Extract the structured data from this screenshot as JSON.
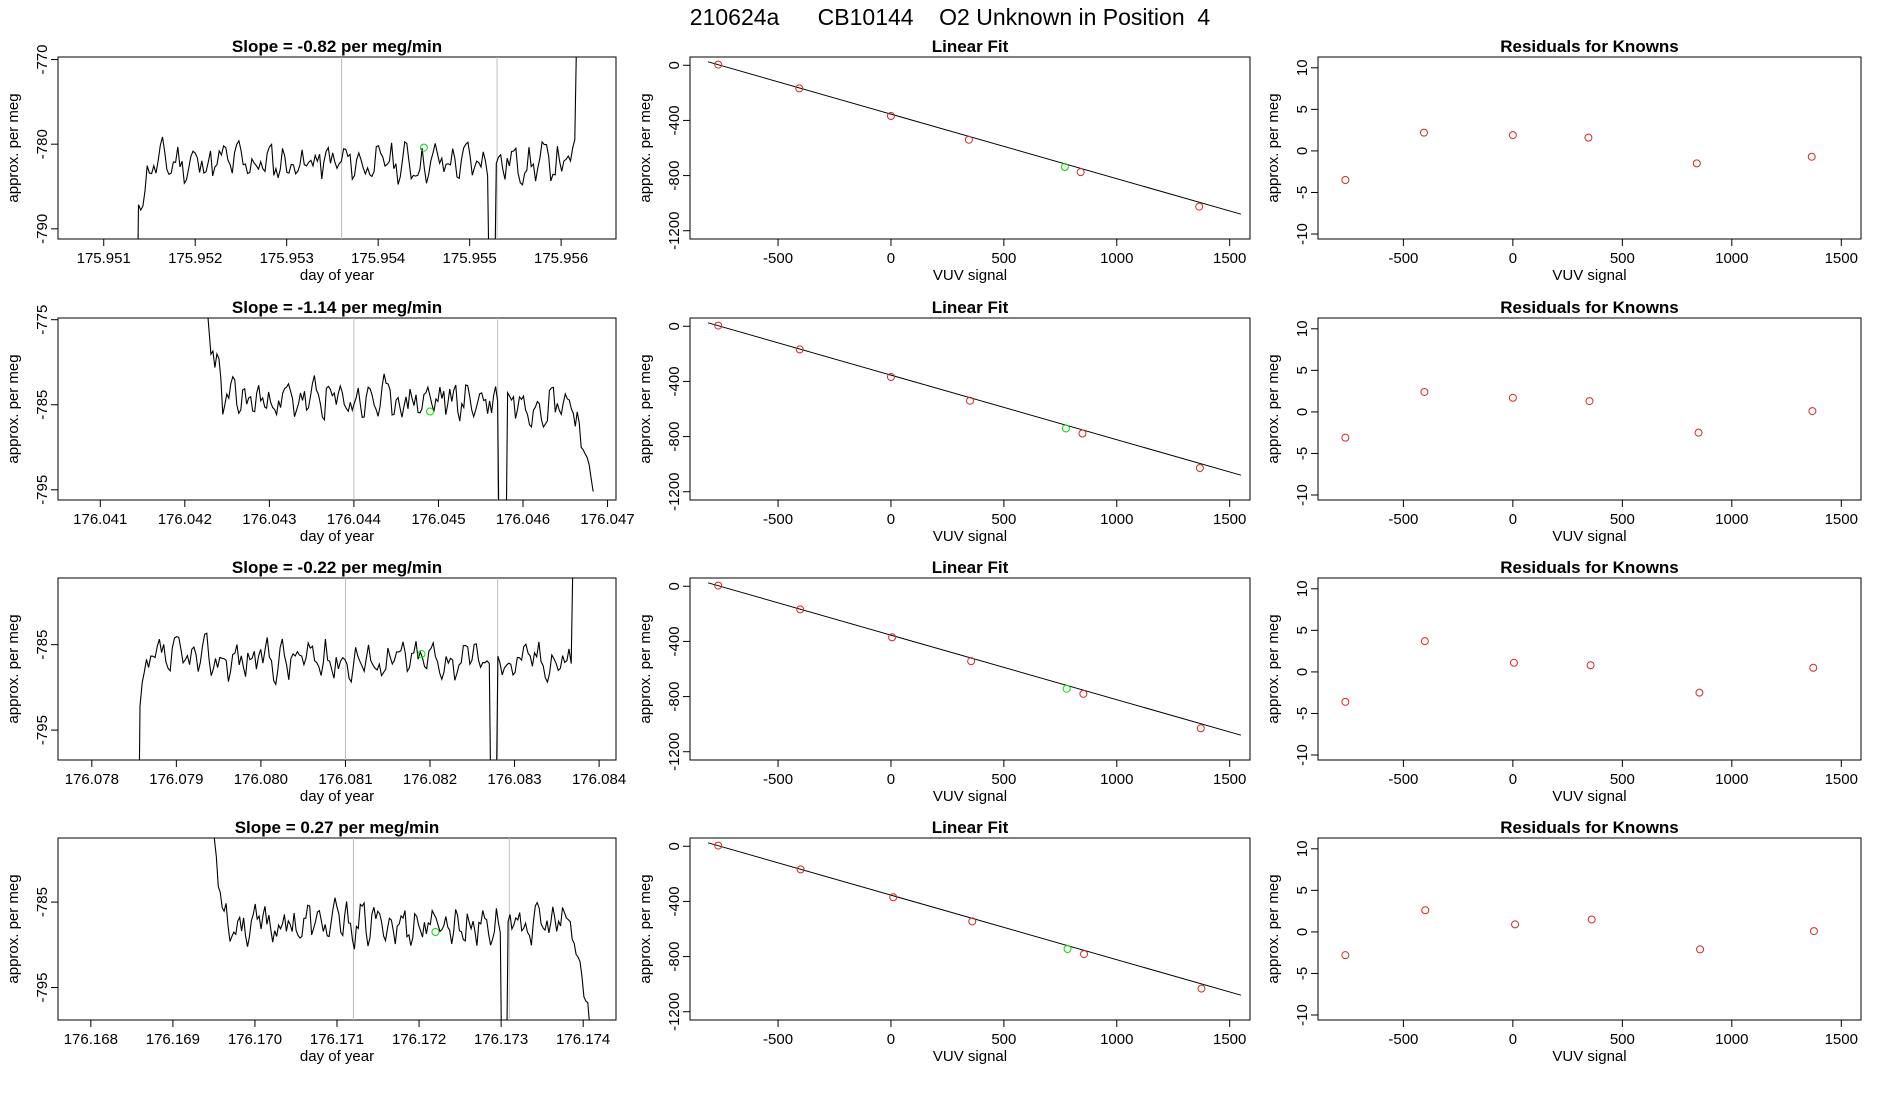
{
  "figure": {
    "title": "210624a      CB10144    O2 Unknown in Position  4"
  },
  "chart_data": [
    {
      "panel": "time",
      "type": "line",
      "title": "Slope =  -0.82  per meg/min",
      "xlabel": "day of year",
      "ylabel": "approx. per meg",
      "xlim": [
        175.9505,
        175.9566
      ],
      "ylim": [
        -791.2,
        -769.7
      ],
      "xticks": [
        "175.951",
        "175.952",
        "175.953",
        "175.954",
        "175.955",
        "175.956"
      ],
      "yticks": [
        "-770",
        "-780",
        "-790"
      ],
      "vlines": [
        175.9536,
        175.9553
      ],
      "marker": {
        "x": 175.9545,
        "y": -780.4
      },
      "start": 175.95138,
      "end": 175.95615,
      "base": -782.2,
      "dip": 175.95525,
      "low_start": true,
      "high_end": true,
      "seed": 11
    },
    {
      "panel": "fit",
      "type": "scatter",
      "title": "Linear Fit",
      "xlabel": "VUV signal",
      "ylabel": "approx. per meg",
      "xlim": [
        -890,
        1590
      ],
      "ylim": [
        -1260,
        60
      ],
      "xticks": [
        "-500",
        "0",
        "500",
        "1000",
        "1500"
      ],
      "yticks": [
        "0",
        "-400",
        "-800",
        "-1200"
      ],
      "line": {
        "x": [
          -810,
          1550
        ],
        "y": [
          25,
          -1080
        ]
      },
      "points": [
        {
          "x": -765,
          "y": 5
        },
        {
          "x": -406,
          "y": -168
        },
        {
          "x": 0,
          "y": -368
        },
        {
          "x": 345,
          "y": -540
        },
        {
          "x": 840,
          "y": -775
        },
        {
          "x": 1365,
          "y": -1025
        }
      ],
      "unknown": {
        "x": 770,
        "y": -738
      }
    },
    {
      "panel": "resid",
      "type": "scatter",
      "title": "Residuals for Knowns",
      "xlabel": "VUV signal",
      "ylabel": "approx. per meg",
      "xlim": [
        -890,
        1590
      ],
      "ylim": [
        -10.6,
        11.3
      ],
      "xticks": [
        "-500",
        "0",
        "500",
        "1000",
        "1500"
      ],
      "yticks": [
        "10",
        "5",
        "0",
        "-5",
        "-10"
      ],
      "points": [
        {
          "x": -765,
          "y": -3.5
        },
        {
          "x": -406,
          "y": 2.2
        },
        {
          "x": 0,
          "y": 1.9
        },
        {
          "x": 345,
          "y": 1.6
        },
        {
          "x": 840,
          "y": -1.5
        },
        {
          "x": 1365,
          "y": -0.7
        }
      ]
    },
    {
      "panel": "time",
      "type": "line",
      "title": "Slope =  -1.14  per meg/min",
      "xlabel": "day of year",
      "ylabel": "approx. per meg",
      "xlim": [
        176.0405,
        176.0471
      ],
      "ylim": [
        -796.2,
        -774.8
      ],
      "xticks": [
        "176.041",
        "176.042",
        "176.043",
        "176.044",
        "176.045",
        "176.046",
        "176.047"
      ],
      "yticks": [
        "-775",
        "-785",
        "-795"
      ],
      "vlines": [
        176.044,
        176.0457
      ],
      "marker": {
        "x": 176.0449,
        "y": -785.8
      },
      "start": 176.04212,
      "end": 176.04683,
      "base": -784.5,
      "dip": 176.04576,
      "low_start": false,
      "high_end": false,
      "seed": 23
    },
    {
      "panel": "fit",
      "type": "scatter",
      "title": "Linear Fit",
      "xlabel": "VUV signal",
      "ylabel": "approx. per meg",
      "xlim": [
        -890,
        1590
      ],
      "ylim": [
        -1260,
        60
      ],
      "xticks": [
        "-500",
        "0",
        "500",
        "1000",
        "1500"
      ],
      "yticks": [
        "0",
        "-400",
        "-800",
        "-1200"
      ],
      "line": {
        "x": [
          -810,
          1550
        ],
        "y": [
          25,
          -1080
        ]
      },
      "points": [
        {
          "x": -765,
          "y": 5
        },
        {
          "x": -404,
          "y": -168
        },
        {
          "x": 0,
          "y": -368
        },
        {
          "x": 350,
          "y": -540
        },
        {
          "x": 848,
          "y": -778
        },
        {
          "x": 1368,
          "y": -1028
        }
      ],
      "unknown": {
        "x": 775,
        "y": -741
      }
    },
    {
      "panel": "resid",
      "type": "scatter",
      "title": "Residuals for Knowns",
      "xlabel": "VUV signal",
      "ylabel": "approx. per meg",
      "xlim": [
        -890,
        1590
      ],
      "ylim": [
        -10.6,
        11.3
      ],
      "xticks": [
        "-500",
        "0",
        "500",
        "1000",
        "1500"
      ],
      "yticks": [
        "10",
        "5",
        "0",
        "-5",
        "-10"
      ],
      "points": [
        {
          "x": -765,
          "y": -3.1
        },
        {
          "x": -404,
          "y": 2.4
        },
        {
          "x": 0,
          "y": 1.7
        },
        {
          "x": 350,
          "y": 1.3
        },
        {
          "x": 848,
          "y": -2.5
        },
        {
          "x": 1368,
          "y": 0.1
        }
      ]
    },
    {
      "panel": "time",
      "type": "line",
      "title": "Slope =  -0.22  per meg/min",
      "xlabel": "day of year",
      "ylabel": "approx. per meg",
      "xlim": [
        176.0776,
        176.0842
      ],
      "ylim": [
        -798.5,
        -777.2
      ],
      "xticks": [
        "176.078",
        "176.079",
        "176.080",
        "176.081",
        "176.082",
        "176.083",
        "176.084"
      ],
      "yticks": [
        "-785",
        "-795"
      ],
      "vlines": [
        176.081,
        176.0828
      ],
      "marker": {
        "x": 176.0819,
        "y": -786.1
      },
      "start": 176.07857,
      "end": 176.08367,
      "base": -786.7,
      "dip": 176.08275,
      "low_start": true,
      "high_end": true,
      "seed": 37
    },
    {
      "panel": "fit",
      "type": "scatter",
      "title": "Linear Fit",
      "xlabel": "VUV signal",
      "ylabel": "approx. per meg",
      "xlim": [
        -890,
        1590
      ],
      "ylim": [
        -1260,
        60
      ],
      "xticks": [
        "-500",
        "0",
        "500",
        "1000",
        "1500"
      ],
      "yticks": [
        "0",
        "-400",
        "-800",
        "-1200"
      ],
      "line": {
        "x": [
          -810,
          1550
        ],
        "y": [
          25,
          -1080
        ]
      },
      "points": [
        {
          "x": -765,
          "y": 5
        },
        {
          "x": -402,
          "y": -168
        },
        {
          "x": 5,
          "y": -370
        },
        {
          "x": 355,
          "y": -543
        },
        {
          "x": 852,
          "y": -780
        },
        {
          "x": 1372,
          "y": -1030
        }
      ],
      "unknown": {
        "x": 778,
        "y": -743
      }
    },
    {
      "panel": "resid",
      "type": "scatter",
      "title": "Residuals for Knowns",
      "xlabel": "VUV signal",
      "ylabel": "approx. per meg",
      "xlim": [
        -890,
        1590
      ],
      "ylim": [
        -10.6,
        11.3
      ],
      "xticks": [
        "-500",
        "0",
        "500",
        "1000",
        "1500"
      ],
      "yticks": [
        "10",
        "5",
        "0",
        "-5",
        "-10"
      ],
      "points": [
        {
          "x": -765,
          "y": -3.6
        },
        {
          "x": -402,
          "y": 3.7
        },
        {
          "x": 5,
          "y": 1.1
        },
        {
          "x": 355,
          "y": 0.8
        },
        {
          "x": 852,
          "y": -2.5
        },
        {
          "x": 1372,
          "y": 0.5
        }
      ]
    },
    {
      "panel": "time",
      "type": "line",
      "title": "Slope =  0.27  per meg/min",
      "xlabel": "day of year",
      "ylabel": "approx. per meg",
      "xlim": [
        176.1676,
        176.1744
      ],
      "ylim": [
        -798.8,
        -777.5
      ],
      "xticks": [
        "176.168",
        "176.169",
        "176.170",
        "176.171",
        "176.172",
        "176.173",
        "176.174"
      ],
      "yticks": [
        "-785",
        "-795"
      ],
      "vlines": [
        176.1712,
        176.1731
      ],
      "marker": {
        "x": 176.1722,
        "y": -788.5
      },
      "start": 176.16934,
      "end": 176.17408,
      "base": -787.6,
      "dip": 176.17303,
      "low_start": false,
      "high_end": false,
      "seed": 53
    },
    {
      "panel": "fit",
      "type": "scatter",
      "title": "Linear Fit",
      "xlabel": "VUV signal",
      "ylabel": "approx. per meg",
      "xlim": [
        -890,
        1590
      ],
      "ylim": [
        -1260,
        60
      ],
      "xticks": [
        "-500",
        "0",
        "500",
        "1000",
        "1500"
      ],
      "yticks": [
        "0",
        "-400",
        "-800",
        "-1200"
      ],
      "line": {
        "x": [
          -810,
          1550
        ],
        "y": [
          25,
          -1080
        ]
      },
      "points": [
        {
          "x": -765,
          "y": 5
        },
        {
          "x": -400,
          "y": -168
        },
        {
          "x": 10,
          "y": -370
        },
        {
          "x": 360,
          "y": -545
        },
        {
          "x": 855,
          "y": -782
        },
        {
          "x": 1375,
          "y": -1032
        }
      ],
      "unknown": {
        "x": 782,
        "y": -745
      }
    },
    {
      "panel": "resid",
      "type": "scatter",
      "title": "Residuals for Knowns",
      "xlabel": "VUV signal",
      "ylabel": "approx. per meg",
      "xlim": [
        -890,
        1590
      ],
      "ylim": [
        -10.6,
        11.3
      ],
      "xticks": [
        "-500",
        "0",
        "500",
        "1000",
        "1500"
      ],
      "yticks": [
        "10",
        "5",
        "0",
        "-5",
        "-10"
      ],
      "points": [
        {
          "x": -765,
          "y": -2.8
        },
        {
          "x": -400,
          "y": 2.6
        },
        {
          "x": 10,
          "y": 0.9
        },
        {
          "x": 360,
          "y": 1.5
        },
        {
          "x": 855,
          "y": -2.1
        },
        {
          "x": 1375,
          "y": 0.1
        }
      ]
    }
  ]
}
